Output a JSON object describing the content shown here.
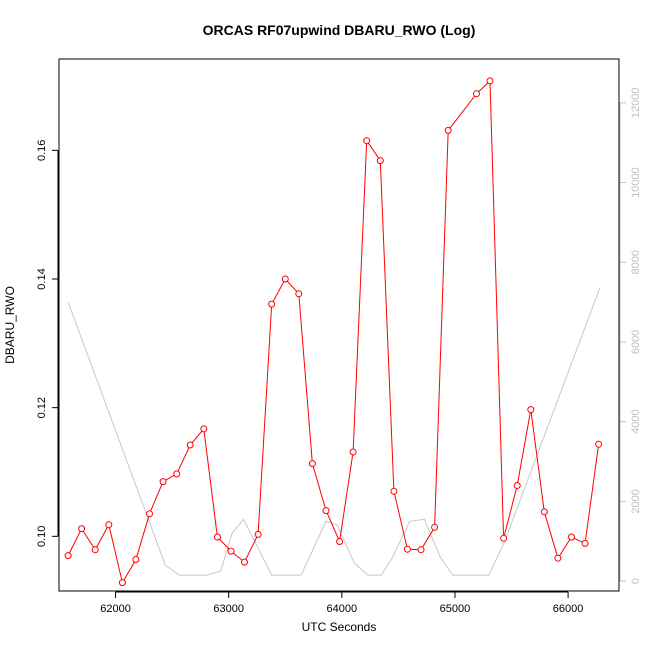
{
  "chart_data": {
    "type": "line",
    "title": "ORCAS RF07upwind DBARU_RWO (Log)",
    "xlabel": "UTC Seconds",
    "ylabel": "DBARU_RWO",
    "xlim": [
      61500,
      66450
    ],
    "ylim": [
      0.0915,
      0.1742
    ],
    "y2lim": [
      -250,
      13100
    ],
    "x_ticks": [
      62000,
      63000,
      64000,
      65000,
      66000
    ],
    "y_ticks": [
      0.1,
      0.12,
      0.14,
      0.16
    ],
    "y2_ticks": [
      0,
      2000,
      4000,
      6000,
      8000,
      10000,
      12000
    ],
    "series": [
      {
        "color": "#ff0000",
        "axis": "left",
        "markers": true,
        "x": [
          61580,
          61700,
          61820,
          61940,
          62060,
          62180,
          62300,
          62420,
          62540,
          62660,
          62780,
          62900,
          63020,
          63140,
          63260,
          63380,
          63500,
          63620,
          63740,
          63860,
          63980,
          64100,
          64220,
          64340,
          64460,
          64580,
          64700,
          64820,
          64940,
          65190,
          65310,
          65430,
          65550,
          65670,
          65790,
          65910,
          66030,
          66150,
          66270
        ],
        "y": [
          0.097,
          0.1012,
          0.0979,
          0.1018,
          0.0928,
          0.0964,
          0.1035,
          0.1085,
          0.1097,
          0.1142,
          0.1167,
          0.0999,
          0.0977,
          0.096,
          0.1003,
          0.1361,
          0.14,
          0.1377,
          0.1113,
          0.104,
          0.0992,
          0.1131,
          0.1615,
          0.1584,
          0.107,
          0.098,
          0.0979,
          0.1014,
          0.1631,
          0.1688,
          0.1708,
          0.0997,
          0.1079,
          0.1197,
          0.1038,
          0.0966,
          0.0999,
          0.0989,
          0.1143
        ]
      },
      {
        "color": "#c8c8c8",
        "axis": "right",
        "markers": false,
        "x": [
          61580,
          62440,
          62560,
          62810,
          62930,
          63030,
          63130,
          63230,
          63380,
          63640,
          63860,
          63960,
          64110,
          64230,
          64350,
          64450,
          64600,
          64730,
          64870,
          64980,
          65300,
          65440,
          66280
        ],
        "y": [
          7000,
          400,
          150,
          150,
          250,
          1200,
          1550,
          1000,
          150,
          150,
          1500,
          1400,
          450,
          150,
          150,
          600,
          1500,
          1550,
          600,
          150,
          150,
          1000,
          7350
        ]
      }
    ]
  }
}
